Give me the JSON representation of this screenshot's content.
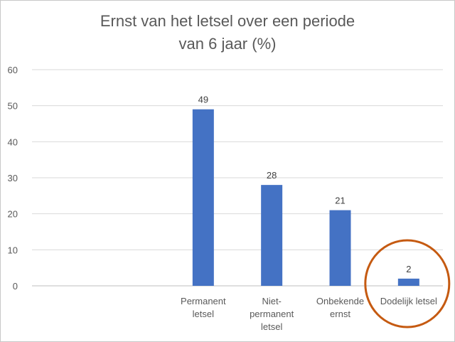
{
  "chart_data": {
    "type": "bar",
    "title_lines": [
      "Ernst van het letsel over een periode",
      "van 6 jaar (%)"
    ],
    "categories": [
      {
        "lines": []
      },
      {
        "lines": []
      },
      {
        "lines": [
          "Permanent",
          "letsel"
        ]
      },
      {
        "lines": [
          "Niet-",
          "permanent",
          "letsel"
        ]
      },
      {
        "lines": [
          "Onbekende",
          "ernst"
        ]
      },
      {
        "lines": [
          "Dodelijk letsel"
        ]
      }
    ],
    "values": [
      null,
      null,
      49,
      28,
      21,
      2
    ],
    "data_labels": [
      "",
      "",
      "49",
      "28",
      "21",
      "2"
    ],
    "ylim": [
      0,
      60
    ],
    "yticks": [
      "0",
      "10",
      "20",
      "30",
      "40",
      "50",
      "60"
    ],
    "xlabel": "",
    "ylabel": "",
    "grid": true,
    "legend": "none",
    "highlight_category_index": 5,
    "colors": {
      "bar": "#4472C4",
      "grid": "#D9D9D9",
      "axis": "#BFBFBF",
      "highlight": "#C55A11"
    }
  }
}
